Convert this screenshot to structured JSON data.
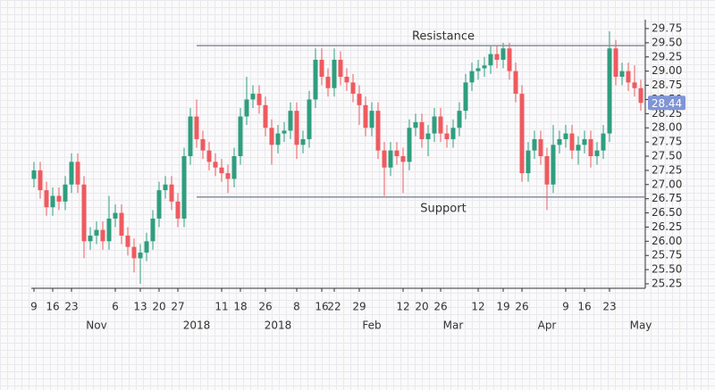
{
  "chart_data": {
    "type": "candlestick",
    "categories": [
      "9",
      null,
      null,
      "16",
      null,
      null,
      "23",
      null,
      null,
      null,
      null,
      null,
      null,
      "6",
      null,
      null,
      null,
      "13",
      null,
      null,
      "20",
      null,
      null,
      "27",
      null,
      null,
      null,
      null,
      null,
      null,
      "11",
      null,
      null,
      "18",
      null,
      null,
      null,
      "26",
      null,
      null,
      null,
      null,
      "8",
      null,
      null,
      null,
      "16",
      null,
      "22",
      null,
      null,
      null,
      "29",
      null,
      null,
      null,
      null,
      null,
      null,
      "12",
      null,
      null,
      "20",
      null,
      null,
      "26",
      null,
      null,
      null,
      null,
      null,
      "12",
      null,
      null,
      null,
      "19",
      null,
      null,
      "26",
      null,
      null,
      null,
      null,
      null,
      null,
      "9",
      null,
      null,
      "16",
      null,
      null,
      null,
      "23",
      null,
      null,
      null,
      null,
      null
    ],
    "months": [
      null,
      null,
      null,
      null,
      null,
      null,
      null,
      null,
      null,
      null,
      "Nov",
      null,
      null,
      null,
      null,
      null,
      null,
      null,
      null,
      null,
      null,
      null,
      null,
      null,
      null,
      null,
      "2018",
      null,
      null,
      null,
      null,
      null,
      null,
      null,
      null,
      null,
      null,
      null,
      null,
      "2018",
      null,
      null,
      null,
      null,
      null,
      null,
      null,
      null,
      null,
      null,
      null,
      null,
      null,
      null,
      "Feb",
      null,
      null,
      null,
      null,
      null,
      null,
      null,
      null,
      null,
      null,
      null,
      null,
      "Mar",
      null,
      null,
      null,
      null,
      null,
      null,
      null,
      null,
      null,
      null,
      null,
      null,
      null,
      null,
      "Apr",
      null,
      null,
      null,
      null,
      null,
      null,
      null,
      null,
      null,
      null,
      null,
      null,
      null,
      null,
      "May",
      null
    ],
    "open": [
      27.1,
      27.25,
      26.9,
      26.6,
      26.8,
      26.7,
      27.0,
      27.4,
      27.0,
      26.0,
      26.1,
      26.2,
      26.0,
      26.4,
      26.5,
      26.1,
      25.9,
      25.7,
      25.8,
      26.0,
      26.4,
      26.9,
      27.0,
      26.7,
      26.4,
      27.5,
      28.2,
      27.8,
      27.6,
      27.4,
      27.3,
      27.2,
      27.1,
      27.5,
      28.2,
      28.5,
      28.6,
      28.4,
      28.0,
      27.7,
      27.9,
      27.95,
      28.3,
      27.7,
      27.8,
      28.5,
      29.2,
      28.9,
      28.7,
      29.2,
      28.9,
      28.8,
      28.6,
      28.4,
      28.0,
      28.3,
      27.6,
      27.3,
      27.6,
      27.5,
      27.4,
      28.0,
      28.1,
      27.8,
      27.9,
      28.2,
      27.9,
      27.8,
      28.0,
      28.3,
      28.8,
      29.0,
      29.05,
      29.1,
      29.3,
      29.2,
      29.4,
      29.0,
      28.6,
      27.2,
      27.6,
      27.8,
      27.5,
      27.0,
      27.7,
      27.8,
      27.9,
      27.6,
      27.7,
      27.8,
      27.5,
      27.6,
      27.9,
      29.4,
      28.9,
      29.0,
      28.8,
      28.7
    ],
    "high": [
      27.4,
      27.4,
      27.05,
      26.95,
      26.95,
      27.15,
      27.55,
      27.55,
      27.15,
      26.25,
      26.35,
      26.35,
      26.8,
      26.65,
      26.65,
      26.25,
      26.05,
      25.95,
      26.15,
      26.55,
      27.05,
      27.15,
      27.15,
      26.85,
      27.65,
      28.35,
      28.5,
      27.95,
      27.75,
      27.55,
      27.45,
      27.35,
      27.65,
      28.35,
      28.9,
      28.75,
      28.75,
      28.55,
      28.15,
      28.05,
      28.1,
      28.45,
      28.45,
      27.95,
      28.65,
      29.4,
      29.4,
      29.05,
      29.4,
      29.35,
      29.05,
      28.95,
      28.75,
      28.55,
      28.45,
      28.45,
      27.75,
      27.75,
      27.75,
      27.65,
      28.15,
      28.25,
      28.25,
      28.05,
      28.35,
      28.35,
      28.05,
      28.15,
      28.45,
      28.95,
      29.15,
      29.2,
      29.25,
      29.45,
      29.45,
      29.5,
      29.5,
      29.15,
      28.75,
      27.75,
      27.95,
      27.95,
      27.65,
      28.05,
      27.95,
      28.05,
      28.05,
      27.85,
      27.95,
      27.95,
      27.75,
      28.05,
      29.7,
      29.55,
      29.15,
      29.15,
      29.1,
      28.85
    ],
    "low": [
      26.95,
      26.75,
      26.45,
      26.45,
      26.55,
      26.55,
      26.85,
      26.85,
      25.7,
      25.85,
      25.95,
      25.85,
      25.85,
      26.25,
      25.95,
      25.75,
      25.45,
      25.25,
      25.65,
      25.85,
      26.25,
      26.75,
      26.55,
      26.25,
      26.25,
      27.35,
      27.65,
      27.45,
      27.25,
      27.15,
      27.05,
      26.85,
      26.95,
      27.35,
      28.05,
      28.35,
      28.25,
      27.85,
      27.35,
      27.55,
      27.75,
      27.8,
      27.45,
      27.55,
      27.65,
      28.35,
      28.75,
      28.55,
      28.55,
      28.75,
      28.65,
      28.45,
      28.05,
      27.85,
      27.85,
      27.45,
      26.8,
      27.15,
      27.35,
      26.85,
      27.25,
      27.85,
      27.65,
      27.5,
      27.75,
      27.75,
      27.65,
      27.65,
      27.85,
      28.15,
      28.65,
      28.85,
      28.9,
      28.95,
      29.05,
      29.05,
      28.85,
      28.45,
      27.05,
      27.05,
      27.45,
      27.35,
      26.55,
      26.85,
      27.55,
      27.65,
      27.45,
      27.35,
      27.55,
      27.3,
      27.35,
      27.45,
      27.75,
      28.75,
      28.75,
      28.65,
      28.55,
      28.3
    ],
    "close": [
      27.25,
      26.9,
      26.6,
      26.8,
      26.7,
      27.0,
      27.4,
      27.0,
      26.0,
      26.1,
      26.2,
      26.0,
      26.4,
      26.5,
      26.1,
      25.9,
      25.7,
      25.8,
      26.0,
      26.4,
      26.9,
      27.0,
      26.7,
      26.4,
      27.5,
      28.2,
      27.8,
      27.6,
      27.4,
      27.3,
      27.2,
      27.1,
      27.5,
      28.2,
      28.5,
      28.6,
      28.4,
      28.0,
      27.7,
      27.9,
      27.95,
      28.3,
      27.7,
      27.8,
      28.5,
      29.2,
      28.9,
      28.7,
      29.2,
      28.9,
      28.8,
      28.6,
      28.4,
      28.0,
      28.3,
      27.6,
      27.3,
      27.6,
      27.5,
      27.4,
      28.0,
      28.1,
      27.8,
      27.9,
      28.2,
      27.9,
      27.8,
      28.0,
      28.3,
      28.8,
      29.0,
      29.05,
      29.1,
      29.3,
      29.2,
      29.4,
      29.0,
      28.6,
      27.2,
      27.6,
      27.8,
      27.5,
      27.0,
      27.7,
      27.8,
      27.9,
      27.6,
      27.7,
      27.8,
      27.5,
      27.6,
      27.9,
      29.4,
      28.9,
      29.0,
      28.8,
      28.7,
      28.44
    ],
    "up_color": "#2f9e7e",
    "down_color": "#ee5a5f",
    "last_color": "#7f95d6",
    "ylim": [
      25.25,
      29.75
    ],
    "yticks": [
      25.25,
      {
        "value": 25.5,
        "label": "25.50"
      },
      25.75,
      {
        "value": 26,
        "label": "26.00"
      },
      26.25,
      {
        "value": 26.5,
        "label": "26.50"
      },
      26.75,
      {
        "value": 27,
        "label": "27.00"
      },
      27.25,
      {
        "value": 27.5,
        "label": "27.50"
      },
      27.75,
      {
        "value": 28,
        "label": "28.00"
      },
      28.25,
      {
        "value": 28.5,
        "label": "28.50"
      },
      28.75,
      {
        "value": 29,
        "label": "29.00"
      },
      29.25,
      {
        "value": 29.5,
        "label": "29.50"
      },
      29.75
    ],
    "levels": [
      {
        "label": "Resistance",
        "value": 29.45
      },
      {
        "label": "Support",
        "value": 26.78
      }
    ]
  }
}
